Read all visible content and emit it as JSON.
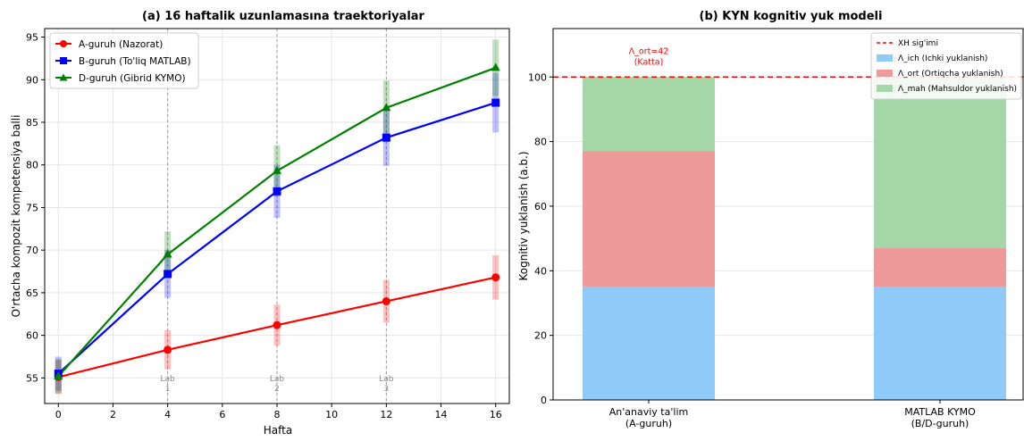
{
  "chart_data": [
    {
      "type": "line",
      "title": "(a) 16 haftalik uzunlamasına traektoriyalar",
      "xlabel": "Hafta",
      "ylabel": "O'rtacha kompozit kompetensiya balli",
      "xlim": [
        -0.5,
        16.5
      ],
      "ylim": [
        52,
        96
      ],
      "xticks": [
        0,
        2,
        4,
        6,
        8,
        10,
        12,
        14,
        16
      ],
      "yticks": [
        55,
        60,
        65,
        70,
        75,
        80,
        85,
        90,
        95
      ],
      "grid": true,
      "legend": "top-left",
      "x": [
        0,
        4,
        8,
        12,
        16
      ],
      "series": [
        {
          "name": "A-guruh (Nazorat)",
          "color": "#ff0000",
          "marker": "circle",
          "values": [
            55.1,
            58.3,
            61.2,
            64.0,
            66.8
          ],
          "err": [
            2.0,
            2.3,
            2.4,
            2.5,
            2.6
          ]
        },
        {
          "name": "B-guruh (To'liq MATLAB)",
          "color": "#0000ff",
          "marker": "square",
          "values": [
            55.5,
            67.2,
            76.9,
            83.2,
            87.3
          ],
          "err": [
            2.0,
            2.8,
            3.1,
            3.3,
            3.5
          ]
        },
        {
          "name": "D-guruh (Gibrid KYMO)",
          "color": "#008000",
          "marker": "triangle",
          "values": [
            55.2,
            69.5,
            79.3,
            86.7,
            91.4
          ],
          "err": [
            2.0,
            2.7,
            3.0,
            3.2,
            3.3
          ]
        }
      ],
      "annotations": [
        {
          "x": 4,
          "line1": "Lab",
          "line2": "1"
        },
        {
          "x": 8,
          "line1": "Lab",
          "line2": "2"
        },
        {
          "x": 12,
          "line1": "Lab",
          "line2": "3"
        }
      ]
    },
    {
      "type": "bar",
      "stacked": true,
      "title": "(b) KYN kognitiv yuk modeli",
      "ylabel": "Kognitiv yuklanish (a.b.)",
      "ylim": [
        0,
        115
      ],
      "yticks": [
        0,
        20,
        40,
        60,
        80,
        100
      ],
      "categories": [
        "An'anaviy ta'lim\n(A-guruh)",
        "MATLAB KYMO\n(B/D-guruh)"
      ],
      "series": [
        {
          "name": "Λ_ich (Ichki yuklanish)",
          "color": "#90caf9",
          "values": [
            35,
            35
          ]
        },
        {
          "name": "Λ_ort (Ortiqcha yuklanish)",
          "color": "#ef9a9a",
          "values": [
            42,
            12
          ]
        },
        {
          "name": "Λ_mah (Mahsuldor yuklanish)",
          "color": "#a5d6a7",
          "values": [
            23,
            53
          ]
        }
      ],
      "capacity": {
        "name": "XH sig'imi",
        "value": 100,
        "color": "#ff0000"
      },
      "annotation": {
        "text": "Λ_ort=42",
        "subtext": "(Katta)",
        "color": "#ff0000"
      },
      "legend": "top-right"
    }
  ]
}
